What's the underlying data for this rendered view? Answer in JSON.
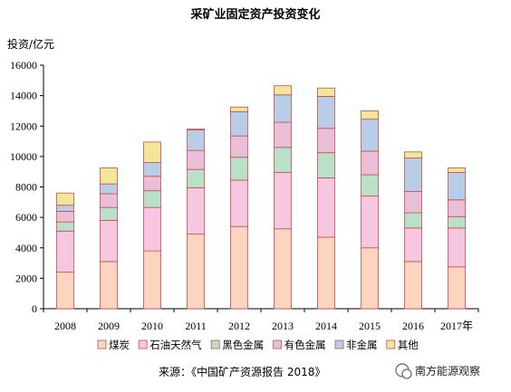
{
  "chart_data": {
    "type": "bar",
    "stacked": true,
    "title": "采矿业固定资产投资变化",
    "ylabel": "投资/亿元",
    "xlabel": "",
    "ylim": [
      0,
      16000
    ],
    "yticks": [
      0,
      2000,
      4000,
      6000,
      8000,
      10000,
      12000,
      14000,
      16000
    ],
    "categories": [
      "2008",
      "2009",
      "2010",
      "2011",
      "2012",
      "2013",
      "2014",
      "2015",
      "2016",
      "2017年"
    ],
    "series": [
      {
        "name": "煤炭",
        "color": "#fcd5c0",
        "values": [
          2400,
          3100,
          3800,
          4900,
          5400,
          5250,
          4700,
          4000,
          3100,
          2750
        ]
      },
      {
        "name": "石油天然气",
        "color": "#f7c6e0",
        "values": [
          2700,
          2700,
          2850,
          3050,
          3050,
          3700,
          3900,
          3400,
          2200,
          2550
        ]
      },
      {
        "name": "黑色金属",
        "color": "#b9e0c8",
        "values": [
          600,
          850,
          1100,
          1200,
          1500,
          1650,
          1650,
          1400,
          1000,
          750
        ]
      },
      {
        "name": "有色金属",
        "color": "#e8bfd6",
        "values": [
          700,
          900,
          950,
          1250,
          1400,
          1650,
          1600,
          1550,
          1400,
          1100
        ]
      },
      {
        "name": "非金属",
        "color": "#b8cde8",
        "values": [
          400,
          650,
          900,
          1350,
          1600,
          1800,
          2100,
          2100,
          2200,
          1800
        ]
      },
      {
        "name": "其他",
        "color": "#f3e69a",
        "values": [
          800,
          1050,
          1350,
          50,
          300,
          600,
          550,
          550,
          400,
          300
        ]
      }
    ],
    "grid": false,
    "legend_position": "bottom"
  },
  "source": "来源：《中国矿产资源报告 2018》",
  "watermark": "南方能源观察"
}
